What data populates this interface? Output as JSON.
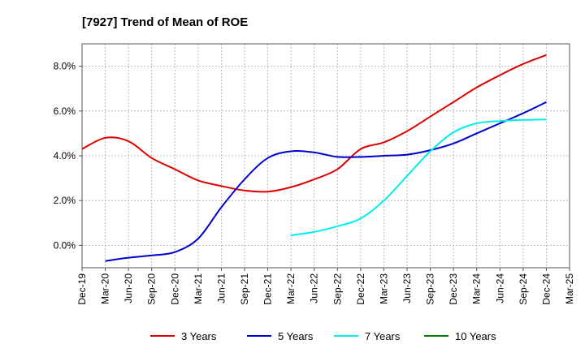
{
  "chart_data": {
    "type": "line",
    "title": "[7927]  Trend of Mean of ROE",
    "xlabel": "",
    "ylabel": "",
    "x_ticks": [
      "Dec-19",
      "Mar-20",
      "Jun-20",
      "Sep-20",
      "Dec-20",
      "Mar-21",
      "Jun-21",
      "Sep-21",
      "Dec-21",
      "Mar-22",
      "Jun-22",
      "Sep-22",
      "Dec-22",
      "Mar-23",
      "Jun-23",
      "Sep-23",
      "Dec-23",
      "Mar-24",
      "Jun-24",
      "Sep-24",
      "Dec-24",
      "Mar-25"
    ],
    "y_ticks": [
      0,
      2,
      4,
      6,
      8
    ],
    "y_tick_labels": [
      "0.0%",
      "2.0%",
      "4.0%",
      "6.0%",
      "8.0%"
    ],
    "ylim": [
      -1.0,
      9.0
    ],
    "grid": true,
    "legend_position": "bottom",
    "series": [
      {
        "name": "3 Years",
        "color": "#dd0000",
        "points": [
          [
            "Dec-19",
            4.3
          ],
          [
            "Mar-20",
            4.8
          ],
          [
            "Jun-20",
            4.65
          ],
          [
            "Sep-20",
            3.9
          ],
          [
            "Dec-20",
            3.4
          ],
          [
            "Mar-21",
            2.9
          ],
          [
            "Jun-21",
            2.65
          ],
          [
            "Sep-21",
            2.45
          ],
          [
            "Dec-21",
            2.4
          ],
          [
            "Mar-22",
            2.6
          ],
          [
            "Jun-22",
            2.95
          ],
          [
            "Sep-22",
            3.4
          ],
          [
            "Dec-22",
            4.3
          ],
          [
            "Mar-23",
            4.6
          ],
          [
            "Jun-23",
            5.1
          ],
          [
            "Sep-23",
            5.75
          ],
          [
            "Dec-23",
            6.4
          ],
          [
            "Mar-24",
            7.05
          ],
          [
            "Jun-24",
            7.6
          ],
          [
            "Sep-24",
            8.1
          ],
          [
            "Dec-24",
            8.5
          ]
        ]
      },
      {
        "name": "5 Years",
        "color": "#0000cc",
        "points": [
          [
            "Mar-20",
            -0.7
          ],
          [
            "Jun-20",
            -0.55
          ],
          [
            "Sep-20",
            -0.45
          ],
          [
            "Dec-20",
            -0.3
          ],
          [
            "Mar-21",
            0.3
          ],
          [
            "Jun-21",
            1.7
          ],
          [
            "Sep-21",
            2.95
          ],
          [
            "Dec-21",
            3.9
          ],
          [
            "Mar-22",
            4.2
          ],
          [
            "Jun-22",
            4.15
          ],
          [
            "Sep-22",
            3.95
          ],
          [
            "Dec-22",
            3.95
          ],
          [
            "Mar-23",
            4.0
          ],
          [
            "Jun-23",
            4.05
          ],
          [
            "Sep-23",
            4.25
          ],
          [
            "Dec-23",
            4.55
          ],
          [
            "Mar-24",
            5.0
          ],
          [
            "Jun-24",
            5.45
          ],
          [
            "Sep-24",
            5.9
          ],
          [
            "Dec-24",
            6.4
          ]
        ]
      },
      {
        "name": "7 Years",
        "color": "#00eeee",
        "points": [
          [
            "Mar-22",
            0.45
          ],
          [
            "Jun-22",
            0.6
          ],
          [
            "Sep-22",
            0.85
          ],
          [
            "Dec-22",
            1.2
          ],
          [
            "Mar-23",
            2.0
          ],
          [
            "Jun-23",
            3.1
          ],
          [
            "Sep-23",
            4.2
          ],
          [
            "Dec-23",
            5.05
          ],
          [
            "Mar-24",
            5.45
          ],
          [
            "Jun-24",
            5.55
          ],
          [
            "Sep-24",
            5.6
          ],
          [
            "Dec-24",
            5.62
          ]
        ]
      },
      {
        "name": "10 Years",
        "color": "#008000",
        "points": []
      }
    ]
  }
}
